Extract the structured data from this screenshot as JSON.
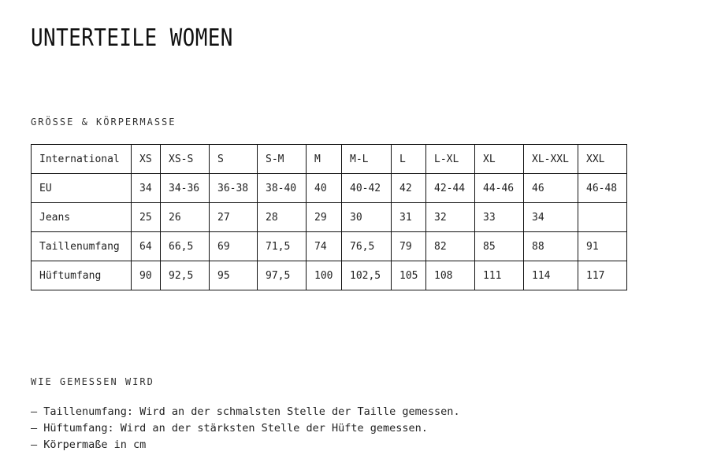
{
  "title": "UNTERTEILE WOMEN",
  "size_section": {
    "heading": "GRÖSSE & KÖRPERMASSE",
    "rows": [
      {
        "label": "International",
        "cells": [
          "XS",
          "XS-S",
          "S",
          "S-M",
          "M",
          "M-L",
          "L",
          "L-XL",
          "XL",
          "XL-XXL",
          "XXL"
        ]
      },
      {
        "label": "EU",
        "cells": [
          "34",
          "34-36",
          "36-38",
          "38-40",
          "40",
          "40-42",
          "42",
          "42-44",
          "44-46",
          "46",
          "46-48"
        ]
      },
      {
        "label": "Jeans",
        "cells": [
          "25",
          "26",
          "27",
          "28",
          "29",
          "30",
          "31",
          "32",
          "33",
          "34",
          ""
        ]
      },
      {
        "label": "Taillenumfang",
        "cells": [
          "64",
          "66,5",
          "69",
          "71,5",
          "74",
          "76,5",
          "79",
          "82",
          "85",
          "88",
          "91"
        ]
      },
      {
        "label": "Hüftumfang",
        "cells": [
          "90",
          "92,5",
          "95",
          "97,5",
          "100",
          "102,5",
          "105",
          "108",
          "111",
          "114",
          "117"
        ]
      }
    ]
  },
  "measure_section": {
    "heading": "WIE GEMESSEN WIRD",
    "items": [
      "Taillenumfang: Wird an der schmalsten Stelle der Taille gemessen.",
      "Hüftumfang: Wird an der stärksten Stelle der Hüfte gemessen.",
      "Körpermaße in cm"
    ]
  }
}
